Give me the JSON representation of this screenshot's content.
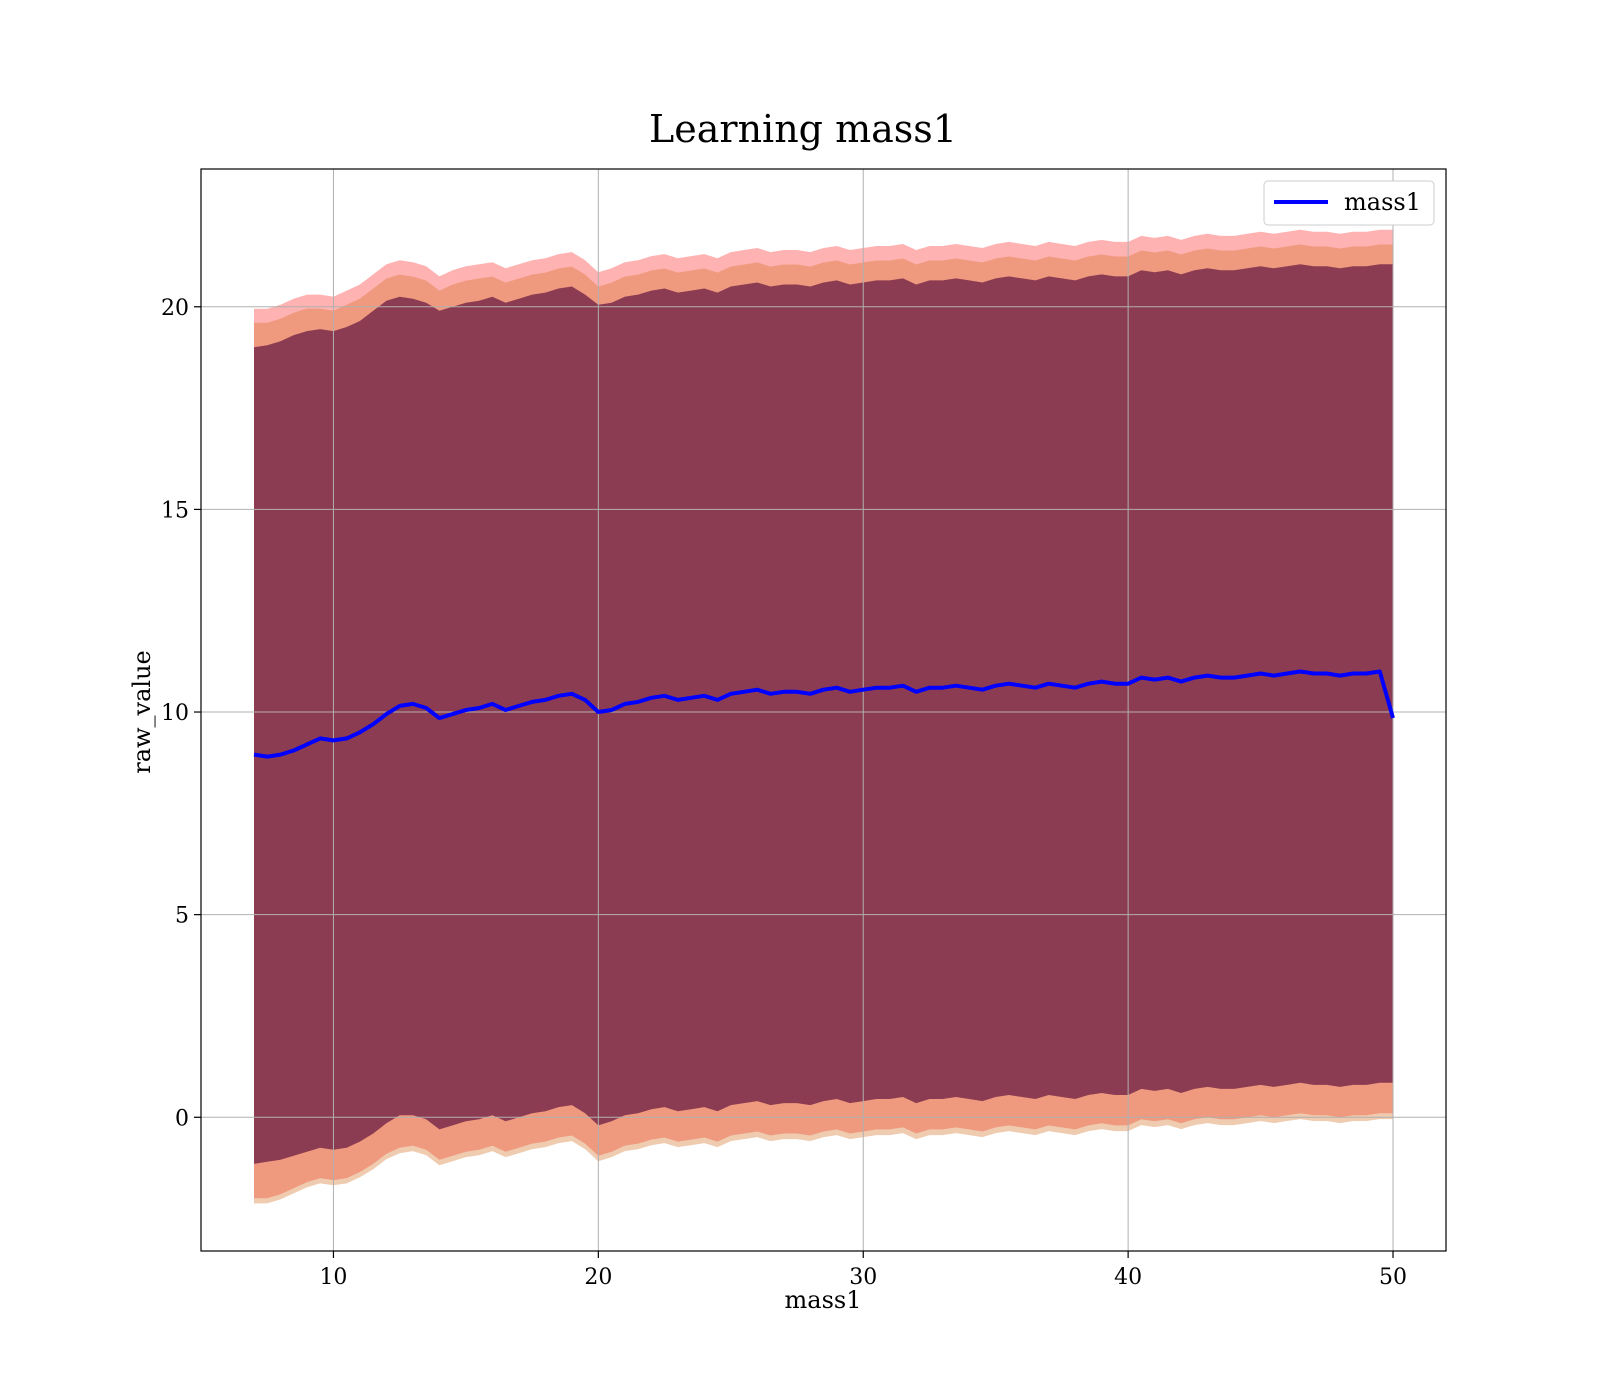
{
  "chart_data": {
    "type": "line",
    "title": "Learning mass1",
    "xlabel": "mass1",
    "ylabel": "raw_value",
    "xlim": [
      5,
      52
    ],
    "ylim": [
      -3.3,
      23.4
    ],
    "xticks": [
      10,
      20,
      30,
      40,
      50
    ],
    "yticks": [
      0,
      5,
      10,
      15,
      20
    ],
    "grid": true,
    "legend": "top-right",
    "colors": {
      "line": "#0000ff",
      "band_outer": "#ff6666",
      "band_middle": "#d2691e",
      "band_inner": "#7a2c4a",
      "grid": "#b0b0b0"
    },
    "series": [
      {
        "name": "mass1",
        "x": [
          7.0,
          7.5,
          8.0,
          8.5,
          9.0,
          9.5,
          10.0,
          10.5,
          11.0,
          11.5,
          12.0,
          12.5,
          13.0,
          13.5,
          14.0,
          14.5,
          15.0,
          15.5,
          16.0,
          16.5,
          17.0,
          17.5,
          18.0,
          18.5,
          19.0,
          19.5,
          20.0,
          20.5,
          21.0,
          21.5,
          22.0,
          22.5,
          23.0,
          23.5,
          24.0,
          24.5,
          25.0,
          25.5,
          26.0,
          26.5,
          27.0,
          27.5,
          28.0,
          28.5,
          29.0,
          29.5,
          30.0,
          30.5,
          31.0,
          31.5,
          32.0,
          32.5,
          33.0,
          33.5,
          34.0,
          34.5,
          35.0,
          35.5,
          36.0,
          36.5,
          37.0,
          37.5,
          38.0,
          38.5,
          39.0,
          39.5,
          40.0,
          40.5,
          41.0,
          41.5,
          42.0,
          42.5,
          43.0,
          43.5,
          44.0,
          44.5,
          45.0,
          45.5,
          46.0,
          46.5,
          47.0,
          47.5,
          48.0,
          48.5,
          49.0,
          49.5,
          50.0
        ],
        "y": [
          8.95,
          8.9,
          8.95,
          9.05,
          9.2,
          9.35,
          9.3,
          9.35,
          9.5,
          9.7,
          9.95,
          10.15,
          10.2,
          10.1,
          9.85,
          9.95,
          10.05,
          10.1,
          10.2,
          10.05,
          10.15,
          10.25,
          10.3,
          10.4,
          10.45,
          10.3,
          10.0,
          10.05,
          10.2,
          10.25,
          10.35,
          10.4,
          10.3,
          10.35,
          10.4,
          10.3,
          10.45,
          10.5,
          10.55,
          10.45,
          10.5,
          10.5,
          10.45,
          10.55,
          10.6,
          10.5,
          10.55,
          10.6,
          10.6,
          10.65,
          10.5,
          10.6,
          10.6,
          10.65,
          10.6,
          10.55,
          10.65,
          10.7,
          10.65,
          10.6,
          10.7,
          10.65,
          10.6,
          10.7,
          10.75,
          10.7,
          10.7,
          10.85,
          10.8,
          10.85,
          10.75,
          10.85,
          10.9,
          10.85,
          10.85,
          10.9,
          10.95,
          10.9,
          10.95,
          11.0,
          10.95,
          10.95,
          10.9,
          10.95,
          10.95,
          11.0,
          9.85
        ]
      }
    ],
    "bands": {
      "upper_outer": [
        19.95,
        19.95,
        20.05,
        20.2,
        20.3,
        20.3,
        20.25,
        20.4,
        20.55,
        20.8,
        21.05,
        21.15,
        21.1,
        21.0,
        20.75,
        20.9,
        21.0,
        21.05,
        21.1,
        20.95,
        21.05,
        21.15,
        21.2,
        21.3,
        21.35,
        21.15,
        20.85,
        20.95,
        21.1,
        21.15,
        21.25,
        21.3,
        21.2,
        21.25,
        21.3,
        21.2,
        21.35,
        21.4,
        21.45,
        21.35,
        21.4,
        21.4,
        21.35,
        21.45,
        21.5,
        21.4,
        21.45,
        21.5,
        21.5,
        21.55,
        21.4,
        21.5,
        21.5,
        21.55,
        21.5,
        21.45,
        21.55,
        21.6,
        21.55,
        21.5,
        21.6,
        21.55,
        21.5,
        21.6,
        21.65,
        21.6,
        21.6,
        21.75,
        21.7,
        21.75,
        21.65,
        21.75,
        21.8,
        21.75,
        21.75,
        21.8,
        21.85,
        21.8,
        21.85,
        21.9,
        21.85,
        21.85,
        21.8,
        21.85,
        21.85,
        21.9,
        21.9
      ],
      "upper_inner": [
        19.0,
        19.05,
        19.15,
        19.3,
        19.4,
        19.45,
        19.4,
        19.5,
        19.65,
        19.9,
        20.15,
        20.25,
        20.2,
        20.1,
        19.9,
        20.0,
        20.1,
        20.15,
        20.25,
        20.1,
        20.2,
        20.3,
        20.35,
        20.45,
        20.5,
        20.3,
        20.05,
        20.1,
        20.25,
        20.3,
        20.4,
        20.45,
        20.35,
        20.4,
        20.45,
        20.35,
        20.5,
        20.55,
        20.6,
        20.5,
        20.55,
        20.55,
        20.5,
        20.6,
        20.65,
        20.55,
        20.6,
        20.65,
        20.65,
        20.7,
        20.55,
        20.65,
        20.65,
        20.7,
        20.65,
        20.6,
        20.7,
        20.75,
        20.7,
        20.65,
        20.75,
        20.7,
        20.65,
        20.75,
        20.8,
        20.75,
        20.75,
        20.9,
        20.85,
        20.9,
        20.8,
        20.9,
        20.95,
        20.9,
        20.9,
        20.95,
        21.0,
        20.95,
        21.0,
        21.05,
        21.0,
        21.0,
        20.95,
        21.0,
        21.0,
        21.05,
        21.05
      ],
      "lower_inner": [
        -1.15,
        -1.1,
        -1.05,
        -0.95,
        -0.85,
        -0.75,
        -0.8,
        -0.75,
        -0.6,
        -0.4,
        -0.15,
        0.05,
        0.05,
        -0.05,
        -0.3,
        -0.2,
        -0.1,
        -0.05,
        0.05,
        -0.1,
        0.0,
        0.1,
        0.15,
        0.25,
        0.3,
        0.1,
        -0.2,
        -0.1,
        0.05,
        0.1,
        0.2,
        0.25,
        0.15,
        0.2,
        0.25,
        0.15,
        0.3,
        0.35,
        0.4,
        0.3,
        0.35,
        0.35,
        0.3,
        0.4,
        0.45,
        0.35,
        0.4,
        0.45,
        0.45,
        0.5,
        0.35,
        0.45,
        0.45,
        0.5,
        0.45,
        0.4,
        0.5,
        0.55,
        0.5,
        0.45,
        0.55,
        0.5,
        0.45,
        0.55,
        0.6,
        0.55,
        0.55,
        0.7,
        0.65,
        0.7,
        0.6,
        0.7,
        0.75,
        0.7,
        0.7,
        0.75,
        0.8,
        0.75,
        0.8,
        0.85,
        0.8,
        0.8,
        0.75,
        0.8,
        0.8,
        0.85,
        0.85
      ],
      "lower_outer": [
        -2.0,
        -2.0,
        -1.9,
        -1.75,
        -1.6,
        -1.5,
        -1.55,
        -1.5,
        -1.35,
        -1.15,
        -0.9,
        -0.75,
        -0.7,
        -0.8,
        -1.05,
        -0.95,
        -0.85,
        -0.8,
        -0.7,
        -0.85,
        -0.75,
        -0.65,
        -0.6,
        -0.5,
        -0.45,
        -0.65,
        -0.95,
        -0.85,
        -0.7,
        -0.65,
        -0.55,
        -0.5,
        -0.6,
        -0.55,
        -0.5,
        -0.6,
        -0.45,
        -0.4,
        -0.35,
        -0.45,
        -0.4,
        -0.4,
        -0.45,
        -0.35,
        -0.3,
        -0.4,
        -0.35,
        -0.3,
        -0.3,
        -0.25,
        -0.4,
        -0.3,
        -0.3,
        -0.25,
        -0.3,
        -0.35,
        -0.25,
        -0.2,
        -0.25,
        -0.3,
        -0.2,
        -0.25,
        -0.3,
        -0.2,
        -0.15,
        -0.2,
        -0.2,
        -0.05,
        -0.1,
        -0.05,
        -0.15,
        -0.05,
        0.0,
        -0.05,
        -0.05,
        0.0,
        0.05,
        0.0,
        0.05,
        0.1,
        0.05,
        0.05,
        0.0,
        0.05,
        0.05,
        0.1,
        0.1
      ]
    }
  }
}
